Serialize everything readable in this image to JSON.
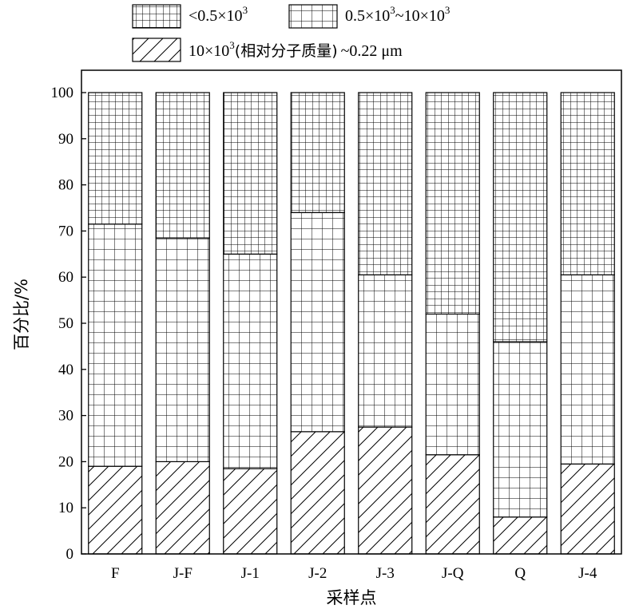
{
  "chart_data": {
    "type": "bar",
    "stacked": true,
    "xlabel": "采样点",
    "ylabel": "百分比/%",
    "ylim": [
      0,
      100
    ],
    "yticks": [
      0,
      10,
      20,
      30,
      40,
      50,
      60,
      70,
      80,
      90,
      100
    ],
    "grid": false,
    "legend_position": "top",
    "categories": [
      "F",
      "J-F",
      "J-1",
      "J-2",
      "J-3",
      "J-Q",
      "Q",
      "J-4"
    ],
    "series": [
      {
        "name": "10×10³(相对分子质量)~0.22 μm",
        "legend": {
          "main": "10×10",
          "sup": "3",
          "rest": "(相对分子质量)",
          "tail": "~0.22 μm"
        },
        "pattern": "diagonal-hatch",
        "values": [
          19,
          20,
          18.5,
          26.5,
          27.5,
          21.5,
          8,
          19.5
        ]
      },
      {
        "name": "0.5×10³~10×10³",
        "legend": {
          "main": "0.5×10",
          "sup": "3",
          "tail": "~10×10",
          "sup2": "3"
        },
        "pattern": "large-grid",
        "values": [
          52.5,
          48.5,
          46.5,
          47.5,
          33,
          30.5,
          38,
          41
        ]
      },
      {
        "name": "<0.5×10³",
        "legend": {
          "main": "<0.5×10",
          "sup": "3"
        },
        "pattern": "small-grid",
        "values": [
          28.5,
          31.5,
          35,
          26,
          39.5,
          48,
          54,
          39.5
        ]
      }
    ]
  }
}
